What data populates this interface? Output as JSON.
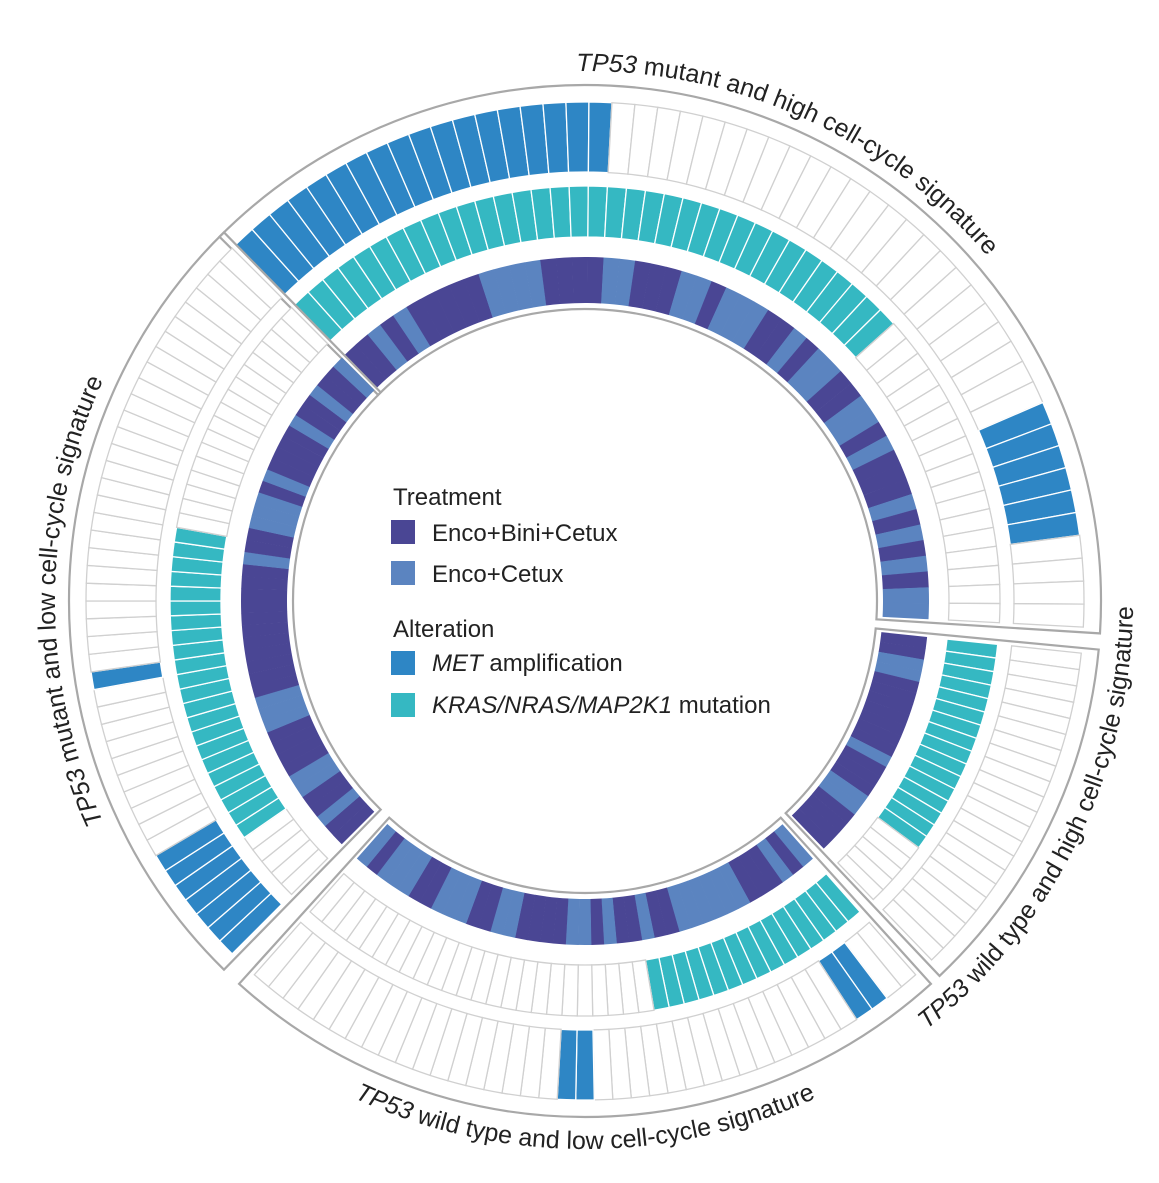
{
  "colors": {
    "enco_bini_cetux": "#4a4694",
    "enco_cetux": "#5b84c0",
    "met": "#2e86c5",
    "kras": "#35b8c2",
    "empty_fill": "#ffffff",
    "cell_stroke": "#d0d0d0",
    "outline": "#a8a8a8"
  },
  "legend": {
    "treatment_title": "Treatment",
    "treatment_items": [
      {
        "key": "enco_bini_cetux",
        "label": "Enco+Bini+Cetux"
      },
      {
        "key": "enco_cetux",
        "label": "Enco+Cetux"
      }
    ],
    "alteration_title": "Alteration",
    "alteration_items": [
      {
        "key": "met",
        "parts": [
          {
            "text": "MET",
            "italic": true
          },
          {
            "text": " amplification",
            "italic": false
          }
        ]
      },
      {
        "key": "kras",
        "parts": [
          {
            "text": "KRAS/NRAS/MAP2K1",
            "italic": true
          },
          {
            "text": " mutation",
            "italic": false
          }
        ]
      }
    ]
  },
  "groups": [
    {
      "label": "TP53 mutant and high cell-cycle signature",
      "n": 52,
      "treatment": "EECECEEEEECCCCEEEECCEEECCECCCEECECCEECCECEEECECECECC",
      "kras": [
        [
          0,
          34
        ]
      ],
      "met": [
        [
          0,
          17
        ],
        [
          42,
          47
        ]
      ]
    },
    {
      "label": "TP53 wild type and high cell-cycle signature",
      "n": 21,
      "treatment": "EECCEEEEEEECEEECCEEEE",
      "kras": [
        [
          0,
          15
        ]
      ],
      "met": []
    },
    {
      "label": "TP53 wild type and low cell-cycle signature",
      "n": 39,
      "treatment": "CECEEECCCCCCEECEECECCEEEECCEECCCEECCCEC",
      "kras": [
        [
          0,
          14
        ]
      ],
      "met": [
        [
          2,
          3
        ],
        [
          19,
          20
        ]
      ]
    },
    {
      "label": "TP53 mutant and low cell-cycle signature",
      "n": 44,
      "treatment": "EECEECCEEEECCCEEEEEEEEEEECEECCCECEEEECEECEEC",
      "kras": [
        [
          5,
          26
        ]
      ],
      "met": [
        [
          0,
          6
        ],
        [
          17,
          17
        ]
      ]
    }
  ]
}
